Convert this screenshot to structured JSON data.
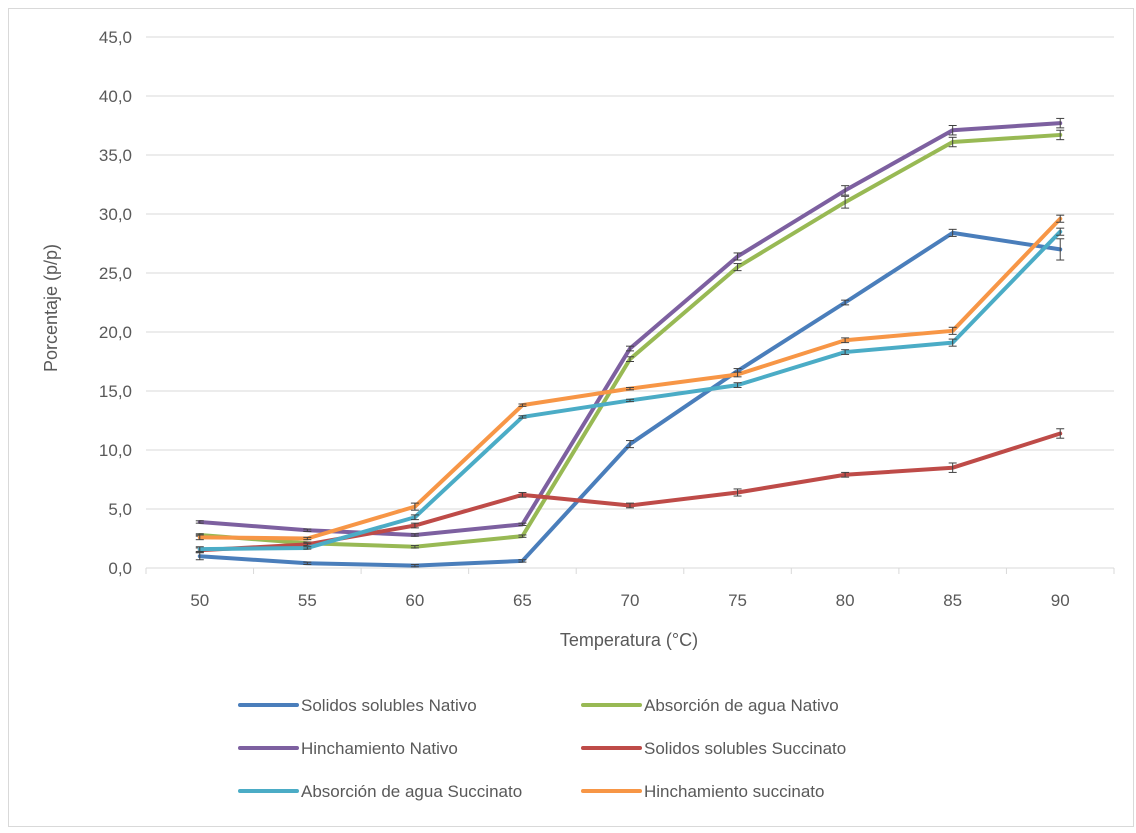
{
  "chart_data": {
    "type": "line",
    "categories": [
      "50",
      "55",
      "60",
      "65",
      "70",
      "75",
      "80",
      "85",
      "90"
    ],
    "xlabel": "Temperatura (°C)",
    "ylabel": "Porcentaje (p/p)",
    "ylim": [
      0,
      45
    ],
    "yticks": [
      "0,0",
      "5,0",
      "10,0",
      "15,0",
      "20,0",
      "25,0",
      "30,0",
      "35,0",
      "40,0",
      "45,0"
    ],
    "grid": true,
    "legend_position": "bottom",
    "series": [
      {
        "name": "Solidos solubles Nativo",
        "color": "#4a7ebb",
        "values": [
          1.0,
          0.4,
          0.2,
          0.6,
          10.5,
          16.7,
          22.5,
          28.4,
          27.0
        ],
        "error": [
          0.3,
          0.1,
          0.1,
          0.1,
          0.3,
          0.2,
          0.2,
          0.3,
          0.9
        ]
      },
      {
        "name": "Absorción de agua Nativo",
        "color": "#98b954",
        "values": [
          2.8,
          2.1,
          1.8,
          2.7,
          17.7,
          25.5,
          31.0,
          36.1,
          36.7
        ],
        "error": [
          0.1,
          0.1,
          0.1,
          0.1,
          0.2,
          0.3,
          0.5,
          0.4,
          0.4
        ]
      },
      {
        "name": "Hinchamiento Nativo",
        "color": "#7d60a0",
        "values": [
          3.9,
          3.2,
          2.8,
          3.7,
          18.6,
          26.4,
          32.0,
          37.1,
          37.7
        ],
        "error": [
          0.1,
          0.1,
          0.1,
          0.1,
          0.2,
          0.3,
          0.4,
          0.4,
          0.4
        ]
      },
      {
        "name": "Solidos solubles Succinato",
        "color": "#be4b48",
        "values": [
          1.5,
          2.0,
          3.6,
          6.2,
          5.3,
          6.4,
          7.9,
          8.5,
          11.4
        ],
        "error": [
          0.2,
          0.1,
          0.2,
          0.2,
          0.2,
          0.3,
          0.2,
          0.4,
          0.4
        ]
      },
      {
        "name": "Absorción de agua Succinato",
        "color": "#4bacc6",
        "values": [
          1.6,
          1.7,
          4.3,
          12.8,
          14.2,
          15.5,
          18.3,
          19.1,
          28.5
        ],
        "error": [
          0.2,
          0.1,
          0.2,
          0.1,
          0.1,
          0.2,
          0.2,
          0.3,
          0.3
        ]
      },
      {
        "name": "Hinchamiento succinato",
        "color": "#f79646",
        "values": [
          2.6,
          2.5,
          5.2,
          13.8,
          15.2,
          16.4,
          19.3,
          20.1,
          29.6
        ],
        "error": [
          0.2,
          0.1,
          0.3,
          0.1,
          0.1,
          0.2,
          0.2,
          0.3,
          0.3
        ]
      }
    ]
  }
}
